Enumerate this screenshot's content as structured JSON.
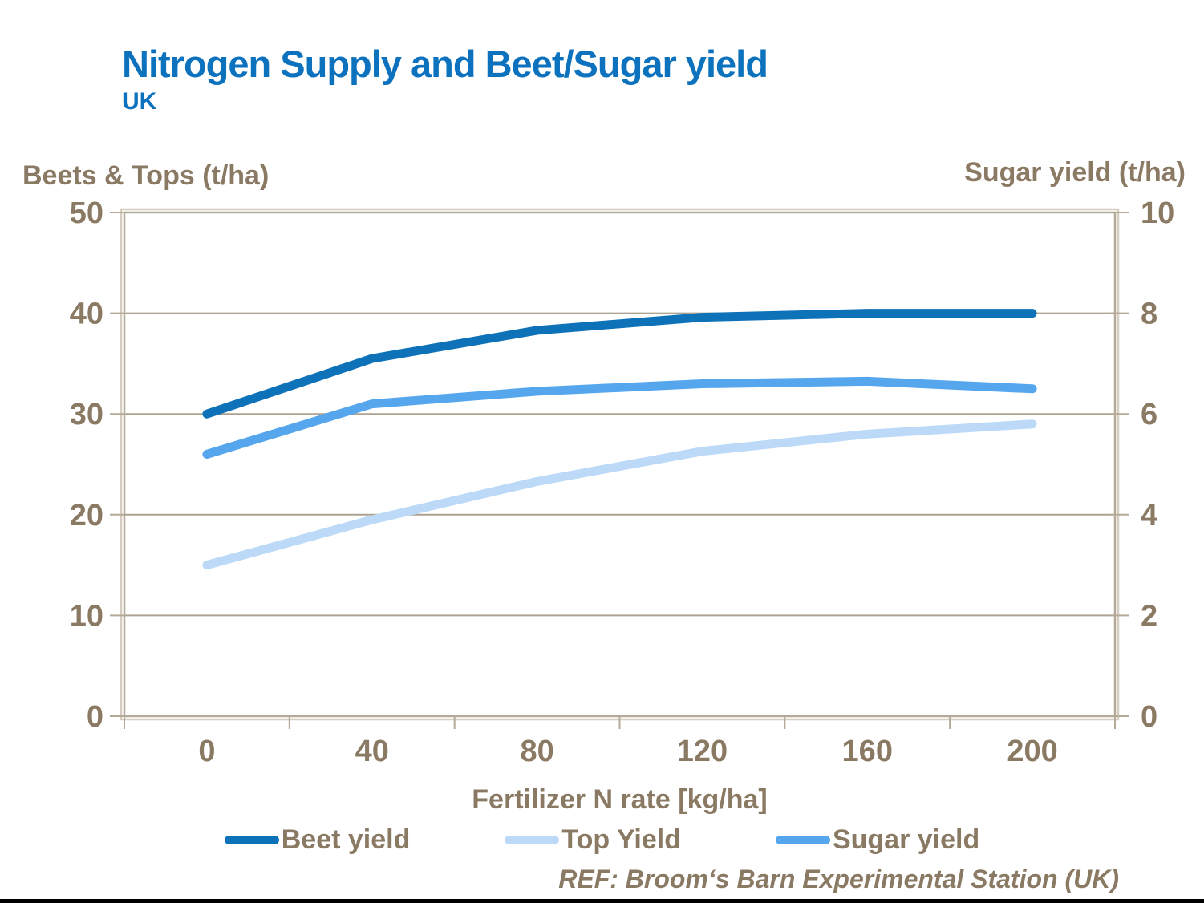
{
  "title": "Nitrogen Supply and Beet/Sugar yield",
  "subtitle": "UK",
  "left_axis_title": "Beets & Tops (t/ha)",
  "right_axis_title": "Sugar yield (t/ha)",
  "x_axis_title": "Fertilizer N rate [kg/ha]",
  "reference": "REF: Broom‘s Barn Experimental Station (UK)",
  "colors": {
    "title_blue": "#0D72BE",
    "axis_text": "#8A7963",
    "grid": "#AEA292",
    "frame": "#B5A998",
    "frame_light": "#D6CCBF",
    "beet": "#0E72B9",
    "top": "#BCDAF7",
    "sugar": "#55A6EC"
  },
  "chart_data": {
    "type": "line",
    "x": [
      0,
      40,
      80,
      120,
      160,
      200
    ],
    "x_tick_labels": [
      "0",
      "40",
      "80",
      "120",
      "160",
      "200"
    ],
    "series": [
      {
        "name": "Beet yield",
        "axis": "left",
        "color_key": "beet",
        "values": [
          30,
          35.5,
          38.3,
          39.6,
          40,
          40
        ]
      },
      {
        "name": "Top Yield",
        "axis": "left",
        "color_key": "top",
        "values": [
          15,
          19.5,
          23.3,
          26.3,
          28,
          29
        ]
      },
      {
        "name": "Sugar yield",
        "axis": "right",
        "color_key": "sugar",
        "values": [
          5.2,
          6.2,
          6.45,
          6.6,
          6.65,
          6.5
        ]
      }
    ],
    "left_ylim": [
      0,
      50
    ],
    "right_ylim": [
      0,
      10
    ],
    "left_ticks": [
      "0",
      "10",
      "20",
      "30",
      "40",
      "50"
    ],
    "right_ticks": [
      "0",
      "2",
      "4",
      "6",
      "8",
      "10"
    ],
    "grid": "horizontal",
    "legend_position": "bottom",
    "title": "Nitrogen Supply and Beet/Sugar yield",
    "xlabel": "Fertilizer N rate [kg/ha]",
    "ylabel_left": "Beets & Tops (t/ha)",
    "ylabel_right": "Sugar yield (t/ha)"
  },
  "legend": [
    {
      "label": "Beet yield",
      "color_key": "beet"
    },
    {
      "label": "Top Yield",
      "color_key": "top"
    },
    {
      "label": "Sugar yield",
      "color_key": "sugar"
    }
  ]
}
